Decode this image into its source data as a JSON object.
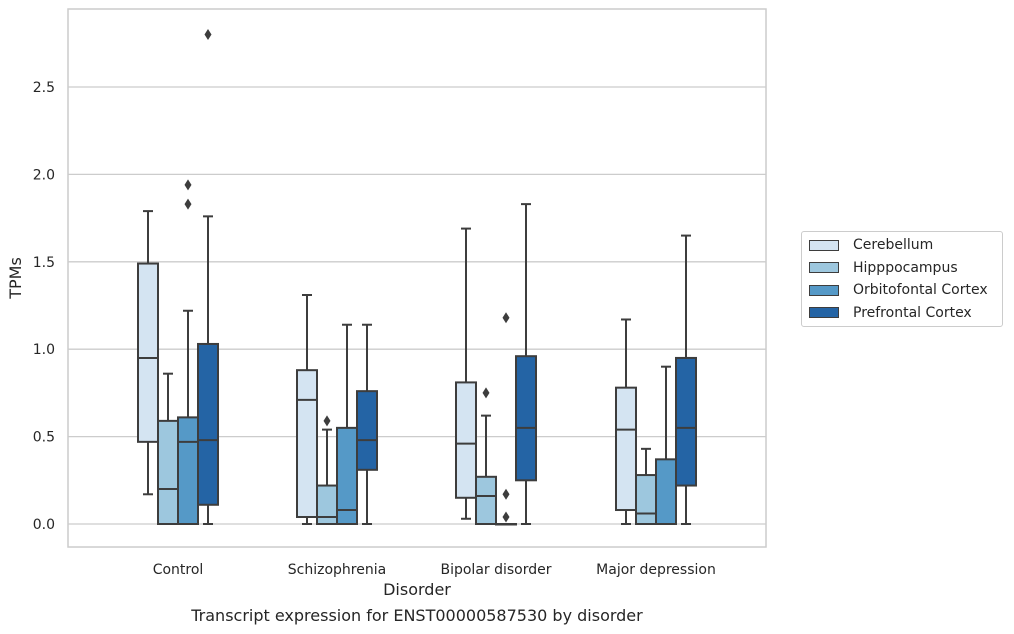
{
  "caption": "Transcript expression for ENST00000587530 by disorder",
  "colors": {
    "Cerebellum": "#d4e4f2",
    "Hipppocampus": "#9dc7de",
    "Orbitofontal Cortex": "#5599c7",
    "Prefrontal Cortex": "#2464a5",
    "edge": "#3d3d3d",
    "grid": "#cccccc"
  },
  "chart_data": {
    "type": "box",
    "title": "",
    "xlabel": "Disorder",
    "ylabel": "TPMs",
    "ylim": [
      -0.135,
      2.95
    ],
    "yticks": [
      0.0,
      0.5,
      1.0,
      1.5,
      2.0,
      2.5
    ],
    "ytick_labels": [
      "0.0",
      "0.5",
      "1.0",
      "1.5",
      "2.0",
      "2.5"
    ],
    "grid": true,
    "legend_position": "right",
    "categories": [
      "Control",
      "Schizophrenia",
      "Bipolar disorder",
      "Major depression"
    ],
    "series": [
      {
        "name": "Cerebellum",
        "boxes": [
          {
            "whislo": 0.17,
            "q1": 0.47,
            "med": 0.95,
            "q3": 1.49,
            "whishi": 1.79,
            "fliers": []
          },
          {
            "whislo": 0.0,
            "q1": 0.04,
            "med": 0.71,
            "q3": 0.88,
            "whishi": 1.31,
            "fliers": []
          },
          {
            "whislo": 0.03,
            "q1": 0.15,
            "med": 0.46,
            "q3": 0.81,
            "whishi": 1.69,
            "fliers": []
          },
          {
            "whislo": 0.0,
            "q1": 0.08,
            "med": 0.54,
            "q3": 0.78,
            "whishi": 1.17,
            "fliers": []
          }
        ]
      },
      {
        "name": "Hipppocampus",
        "boxes": [
          {
            "whislo": 0.0,
            "q1": 0.0,
            "med": 0.2,
            "q3": 0.59,
            "whishi": 0.86,
            "fliers": []
          },
          {
            "whislo": 0.0,
            "q1": 0.0,
            "med": 0.04,
            "q3": 0.22,
            "whishi": 0.54,
            "fliers": [
              0.59
            ]
          },
          {
            "whislo": 0.0,
            "q1": 0.0,
            "med": 0.16,
            "q3": 0.27,
            "whishi": 0.62,
            "fliers": [
              0.75
            ]
          },
          {
            "whislo": 0.0,
            "q1": 0.0,
            "med": 0.06,
            "q3": 0.28,
            "whishi": 0.43,
            "fliers": []
          }
        ]
      },
      {
        "name": "Orbitofontal Cortex",
        "boxes": [
          {
            "whislo": 0.0,
            "q1": 0.0,
            "med": 0.47,
            "q3": 0.61,
            "whishi": 1.22,
            "fliers": [
              1.83,
              1.94
            ]
          },
          {
            "whislo": 0.0,
            "q1": 0.0,
            "med": 0.08,
            "q3": 0.55,
            "whishi": 1.14,
            "fliers": []
          },
          {
            "whislo": 0.0,
            "q1": 0.0,
            "med": 0.0,
            "q3": 0.0,
            "whishi": 0.0,
            "fliers": [
              0.04,
              0.17,
              1.18
            ]
          },
          {
            "whislo": 0.0,
            "q1": 0.0,
            "med": 0.0,
            "q3": 0.37,
            "whishi": 0.9,
            "fliers": []
          }
        ]
      },
      {
        "name": "Prefrontal Cortex",
        "boxes": [
          {
            "whislo": 0.0,
            "q1": 0.11,
            "med": 0.48,
            "q3": 1.03,
            "whishi": 1.76,
            "fliers": [
              2.8
            ]
          },
          {
            "whislo": 0.0,
            "q1": 0.31,
            "med": 0.48,
            "q3": 0.76,
            "whishi": 1.14,
            "fliers": []
          },
          {
            "whislo": 0.0,
            "q1": 0.25,
            "med": 0.55,
            "q3": 0.96,
            "whishi": 1.83,
            "fliers": []
          },
          {
            "whislo": 0.0,
            "q1": 0.22,
            "med": 0.55,
            "q3": 0.95,
            "whishi": 1.65,
            "fliers": []
          }
        ]
      }
    ]
  }
}
